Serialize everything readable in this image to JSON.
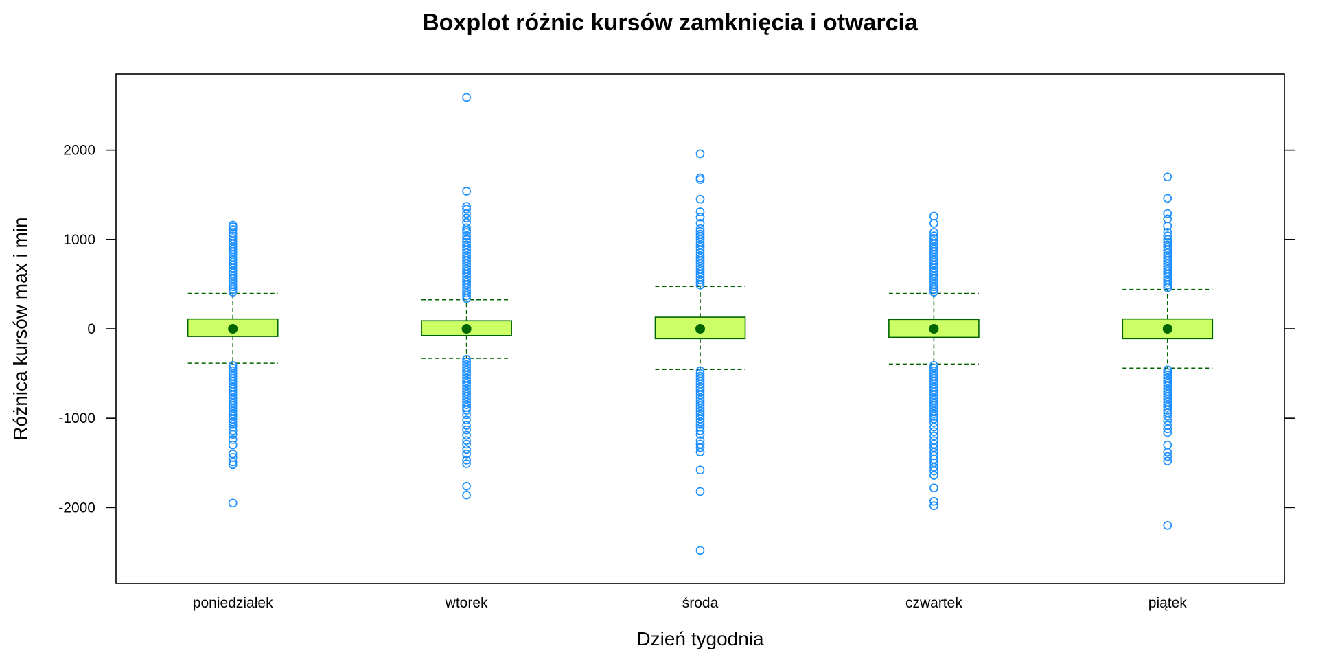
{
  "chart_data": {
    "type": "boxplot",
    "title": "Boxplot różnic kursów zamknięcia i otwarcia",
    "xlabel": "Dzień tygodnia",
    "ylabel": "Różnica kursów max i min",
    "ylim": [
      -2850,
      2850
    ],
    "yticks": [
      -2000,
      -1000,
      0,
      1000,
      2000
    ],
    "grid": false,
    "colors": {
      "box_fill": "#ccff66",
      "box_border": "#006400",
      "median_dot": "#006400",
      "whisker": "#006400",
      "outlier": "#1e90ff",
      "frame": "#000000"
    },
    "categories": [
      "poniedziałek",
      "wtorek",
      "środa",
      "czwartek",
      "piątek"
    ],
    "boxes": [
      {
        "name": "poniedziałek",
        "median": 0,
        "q1": -85,
        "q3": 110,
        "whisker_low": -385,
        "whisker_high": 395,
        "outliers_high": [
          410,
          440,
          470,
          500,
          530,
          560,
          590,
          620,
          650,
          680,
          710,
          740,
          770,
          800,
          830,
          860,
          890,
          920,
          950,
          980,
          1010,
          1040,
          1070,
          1110,
          1140,
          1160
        ],
        "outliers_low": [
          -410,
          -440,
          -470,
          -500,
          -530,
          -560,
          -590,
          -620,
          -650,
          -680,
          -710,
          -740,
          -770,
          -800,
          -830,
          -860,
          -890,
          -920,
          -950,
          -980,
          -1010,
          -1040,
          -1070,
          -1100,
          -1140,
          -1180,
          -1240,
          -1300,
          -1400,
          -1440,
          -1490,
          -1520,
          -1950
        ]
      },
      {
        "name": "wtorek",
        "median": 0,
        "q1": -75,
        "q3": 90,
        "whisker_low": -330,
        "whisker_high": 325,
        "outliers_high": [
          340,
          370,
          400,
          430,
          460,
          490,
          520,
          550,
          580,
          610,
          640,
          670,
          700,
          730,
          760,
          790,
          820,
          850,
          880,
          910,
          940,
          970,
          1000,
          1040,
          1080,
          1100,
          1130,
          1190,
          1240,
          1290,
          1340,
          1370,
          1540,
          2590
        ],
        "outliers_low": [
          -340,
          -370,
          -400,
          -430,
          -460,
          -490,
          -520,
          -550,
          -580,
          -610,
          -640,
          -670,
          -700,
          -730,
          -760,
          -790,
          -820,
          -850,
          -880,
          -910,
          -960,
          -1020,
          -1080,
          -1130,
          -1190,
          -1250,
          -1290,
          -1350,
          -1400,
          -1470,
          -1510,
          -1760,
          -1860
        ]
      },
      {
        "name": "środa",
        "median": 0,
        "q1": -110,
        "q3": 130,
        "whisker_low": -455,
        "whisker_high": 475,
        "outliers_high": [
          490,
          520,
          550,
          580,
          610,
          640,
          670,
          700,
          730,
          760,
          790,
          820,
          850,
          880,
          910,
          940,
          970,
          1000,
          1030,
          1060,
          1090,
          1120,
          1180,
          1250,
          1310,
          1450,
          1670,
          1690,
          1960
        ],
        "outliers_low": [
          -470,
          -500,
          -530,
          -560,
          -590,
          -620,
          -650,
          -680,
          -710,
          -740,
          -770,
          -800,
          -830,
          -860,
          -890,
          -920,
          -950,
          -980,
          -1010,
          -1040,
          -1070,
          -1100,
          -1140,
          -1180,
          -1250,
          -1290,
          -1330,
          -1380,
          -1580,
          -1820,
          -2480
        ]
      },
      {
        "name": "czwartek",
        "median": 0,
        "q1": -95,
        "q3": 105,
        "whisker_low": -395,
        "whisker_high": 395,
        "outliers_high": [
          410,
          440,
          470,
          500,
          530,
          560,
          590,
          620,
          650,
          680,
          710,
          740,
          770,
          800,
          830,
          860,
          890,
          920,
          950,
          980,
          1010,
          1040,
          1080,
          1180,
          1260
        ],
        "outliers_low": [
          -410,
          -440,
          -470,
          -500,
          -530,
          -560,
          -590,
          -620,
          -650,
          -680,
          -710,
          -740,
          -770,
          -800,
          -830,
          -860,
          -890,
          -920,
          -950,
          -980,
          -1010,
          -1050,
          -1100,
          -1150,
          -1200,
          -1250,
          -1290,
          -1330,
          -1380,
          -1420,
          -1460,
          -1500,
          -1550,
          -1590,
          -1640,
          -1780,
          -1930,
          -1980
        ]
      },
      {
        "name": "piątek",
        "median": 0,
        "q1": -110,
        "q3": 110,
        "whisker_low": -440,
        "whisker_high": 440,
        "outliers_high": [
          460,
          490,
          520,
          550,
          580,
          610,
          640,
          670,
          700,
          730,
          760,
          790,
          820,
          850,
          880,
          910,
          940,
          970,
          1000,
          1040,
          1080,
          1150,
          1230,
          1290,
          1460,
          1700
        ],
        "outliers_low": [
          -460,
          -490,
          -520,
          -550,
          -580,
          -610,
          -640,
          -670,
          -700,
          -730,
          -760,
          -790,
          -820,
          -850,
          -880,
          -910,
          -940,
          -980,
          -1030,
          -1080,
          -1120,
          -1160,
          -1300,
          -1380,
          -1430,
          -1480,
          -2200
        ]
      }
    ]
  }
}
